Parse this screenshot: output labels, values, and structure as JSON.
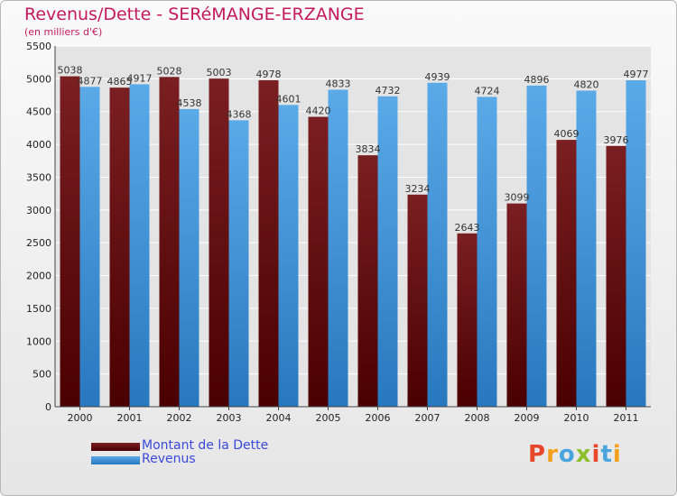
{
  "chart_data": {
    "type": "bar",
    "title": "Revenus/Dette - SERéMANGE-ERZANGE",
    "subtitle": "(en milliers d'€)",
    "categories": [
      "2000",
      "2001",
      "2002",
      "2003",
      "2004",
      "2005",
      "2006",
      "2007",
      "2008",
      "2009",
      "2010",
      "2011"
    ],
    "series": [
      {
        "name": "Montant de la Dette",
        "values": [
          5038,
          4865,
          5028,
          5003,
          4978,
          4420,
          3834,
          3234,
          2643,
          3099,
          4069,
          3976
        ],
        "color": "#7a1f22",
        "color_dark": "#4a0000"
      },
      {
        "name": "Revenus",
        "values": [
          4877,
          4917,
          4538,
          4368,
          4601,
          4833,
          4732,
          4939,
          4724,
          4896,
          4820,
          4977
        ],
        "color": "#5aaae8",
        "color_dark": "#2878c0"
      }
    ],
    "ylim": [
      0,
      5500
    ],
    "yticks": [
      0,
      500,
      1000,
      1500,
      2000,
      2500,
      3000,
      3500,
      4000,
      4500,
      5000,
      5500
    ],
    "grid": true,
    "legend_position": "bottom-left"
  },
  "logo": {
    "text": "Proxiti",
    "colors": [
      "#e8472c",
      "#f3a11c",
      "#49a5de",
      "#8bbf2c",
      "#e8472c",
      "#49a5de",
      "#f3a11c"
    ]
  }
}
